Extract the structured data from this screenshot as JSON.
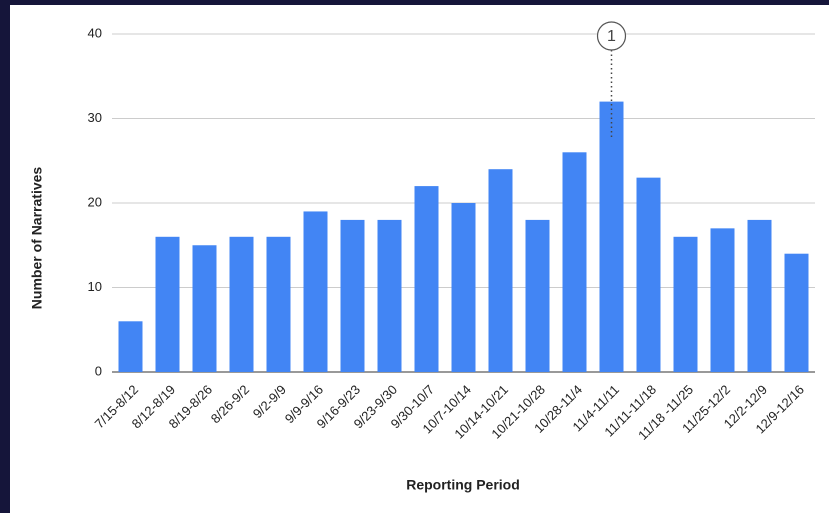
{
  "chart_data": {
    "type": "bar",
    "x_label": "Reporting Period",
    "y_label": "Number of Narratives",
    "categories": [
      "7/15-8/12",
      "8/12-8/19",
      "8/19-8/26",
      "8/26-9/2",
      "9/2-9/9",
      "9/9-9/16",
      "9/16-9/23",
      "9/23-9/30",
      "9/30-10/7",
      "10/7-10/14",
      "10/14-10/21",
      "10/21-10/28",
      "10/28-11/4",
      "11/4-11/11",
      "11/11-11/18",
      "11/18 -11/25",
      "11/25-12/2",
      "12/2-12/9",
      "12/9-12/16"
    ],
    "values": [
      6,
      16,
      15,
      16,
      16,
      19,
      18,
      18,
      22,
      20,
      24,
      18,
      26,
      32,
      23,
      16,
      17,
      18,
      14
    ],
    "color": "#4285f4",
    "ylim": [
      0,
      40
    ],
    "yticks": [
      0,
      10,
      20,
      30,
      40
    ],
    "grid": true,
    "annotations": [
      {
        "text": "1",
        "category": "11/4-11/11"
      }
    ]
  }
}
